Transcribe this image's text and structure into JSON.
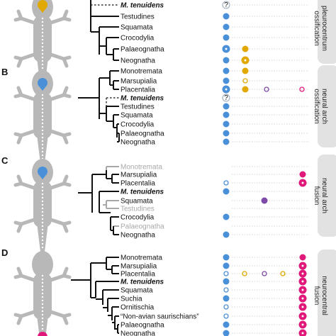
{
  "colors": {
    "blue": "#4a90d9",
    "gold": "#e0a800",
    "pink": "#e0187a",
    "purple": "#7d4aa8",
    "tree": "#111111",
    "grey": "#a8a8a8",
    "lizard": "#b8b8b8",
    "tab": "#e2e2e2"
  },
  "panels": [
    {
      "letter": "",
      "side_label": [
        "pleurocentrum",
        "ossification"
      ],
      "highlight": "gold",
      "taxa": [
        {
          "name": "M. tenuidens",
          "style": "bold"
        },
        {
          "name": "Testudines",
          "style": "normal"
        },
        {
          "name": "Squamata",
          "style": "normal"
        },
        {
          "name": "Crocodylia",
          "style": "normal"
        },
        {
          "name": "Palaeognatha",
          "style": "normal"
        },
        {
          "name": "Neognatha",
          "style": "normal"
        }
      ]
    },
    {
      "letter": "B",
      "side_label": [
        "neural arch",
        "ossification"
      ],
      "highlight": "blue",
      "taxa": [
        {
          "name": "Monotremata",
          "style": "normal"
        },
        {
          "name": "Marsupialia",
          "style": "normal"
        },
        {
          "name": "Placentalia",
          "style": "normal"
        },
        {
          "name": "M. tenuidens",
          "style": "bold"
        },
        {
          "name": "Testudines",
          "style": "normal"
        },
        {
          "name": "Squamata",
          "style": "normal"
        },
        {
          "name": "Crocodylia",
          "style": "normal"
        },
        {
          "name": "Palaeognatha",
          "style": "normal"
        },
        {
          "name": "Neognatha",
          "style": "normal"
        }
      ]
    },
    {
      "letter": "C",
      "side_label": [
        "neural arch",
        "fusion"
      ],
      "highlight": "blue",
      "taxa": [
        {
          "name": "Monotremata",
          "style": "grey"
        },
        {
          "name": "Marsupialia",
          "style": "normal"
        },
        {
          "name": "Placentalia",
          "style": "normal"
        },
        {
          "name": "M. tenuidens",
          "style": "bold"
        },
        {
          "name": "Squamata",
          "style": "normal"
        },
        {
          "name": "Testudines",
          "style": "grey"
        },
        {
          "name": "Crocodylia",
          "style": "normal"
        },
        {
          "name": "Palaeognatha",
          "style": "grey"
        },
        {
          "name": "Neognatha",
          "style": "normal"
        }
      ]
    },
    {
      "letter": "D",
      "side_label": [
        "neurocentral",
        "fusion"
      ],
      "highlight": "pink",
      "taxa": [
        {
          "name": "Monotremata",
          "style": "normal"
        },
        {
          "name": "Marsupialia",
          "style": "normal"
        },
        {
          "name": "Placentalia",
          "style": "normal"
        },
        {
          "name": "M. tenuidens",
          "style": "bold"
        },
        {
          "name": "Squamata",
          "style": "normal"
        },
        {
          "name": "Suchia",
          "style": "normal"
        },
        {
          "name": "Ornitischia",
          "style": "normal"
        },
        {
          "name": "“Non-avian saurischians”",
          "style": "normal"
        },
        {
          "name": "Palaeognatha",
          "style": "normal"
        },
        {
          "name": "Neognatha",
          "style": "normal"
        }
      ]
    }
  ],
  "unknown_marker": "?"
}
